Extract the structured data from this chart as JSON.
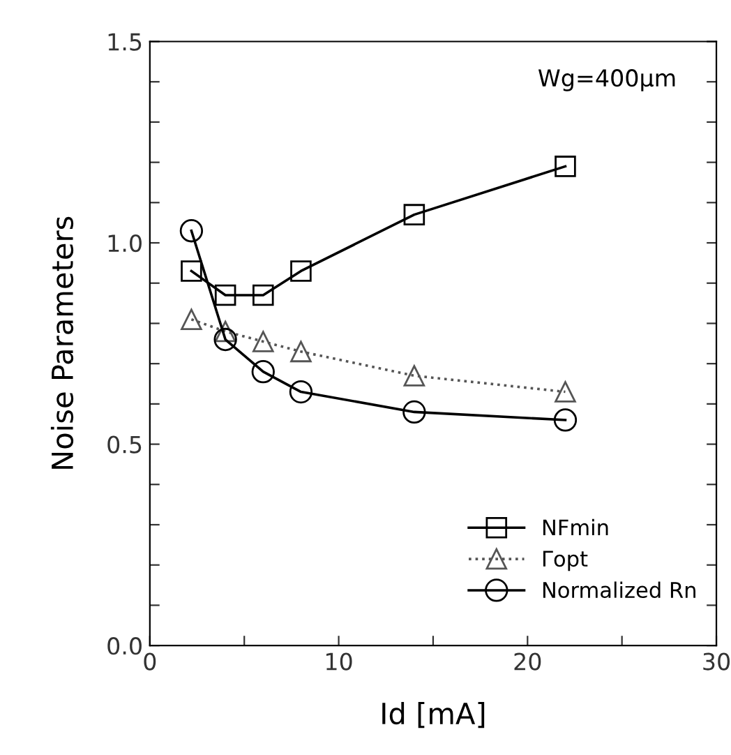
{
  "chart_data": {
    "type": "line",
    "xlabel": "Id [mA]",
    "ylabel": "Noise Parameters",
    "annotations": [
      "Wg=400μm"
    ],
    "x": [
      2.2,
      4,
      6,
      8,
      14,
      22
    ],
    "series": [
      {
        "name": "NFmin",
        "color": "#000000",
        "marker": "square",
        "line_style": "solid",
        "values": [
          0.93,
          0.87,
          0.87,
          0.93,
          1.07,
          1.19
        ]
      },
      {
        "name": "Γopt",
        "color": "#555555",
        "marker": "triangle",
        "line_style": "dotted",
        "values": [
          0.81,
          0.78,
          0.755,
          0.73,
          0.67,
          0.63
        ]
      },
      {
        "name": "Normalized Rn",
        "color": "#000000",
        "marker": "circle",
        "line_style": "solid",
        "values": [
          1.03,
          0.76,
          0.68,
          0.63,
          0.58,
          0.56
        ]
      }
    ],
    "xlim": [
      0,
      30
    ],
    "ylim": [
      0,
      1.5
    ],
    "xticks": [
      0,
      {
        "value": 5,
        "label": null
      },
      10,
      {
        "value": 15,
        "label": null
      },
      20,
      {
        "value": 25,
        "label": null
      },
      30
    ],
    "yticks": [
      {
        "value": 0,
        "label": "0.0"
      },
      {
        "value": 0.1,
        "label": null
      },
      {
        "value": 0.2,
        "label": null
      },
      {
        "value": 0.3,
        "label": null
      },
      {
        "value": 0.4,
        "label": null
      },
      0.5,
      {
        "value": 0.6,
        "label": null
      },
      {
        "value": 0.7,
        "label": null
      },
      {
        "value": 0.8,
        "label": null
      },
      {
        "value": 0.9,
        "label": null
      },
      {
        "value": 1.0,
        "label": "1.0"
      },
      {
        "value": 1.1,
        "label": null
      },
      {
        "value": 1.2,
        "label": null
      },
      {
        "value": 1.3,
        "label": null
      },
      {
        "value": 1.4,
        "label": null
      },
      1.5
    ],
    "grid": false,
    "legend": "bottom right"
  }
}
